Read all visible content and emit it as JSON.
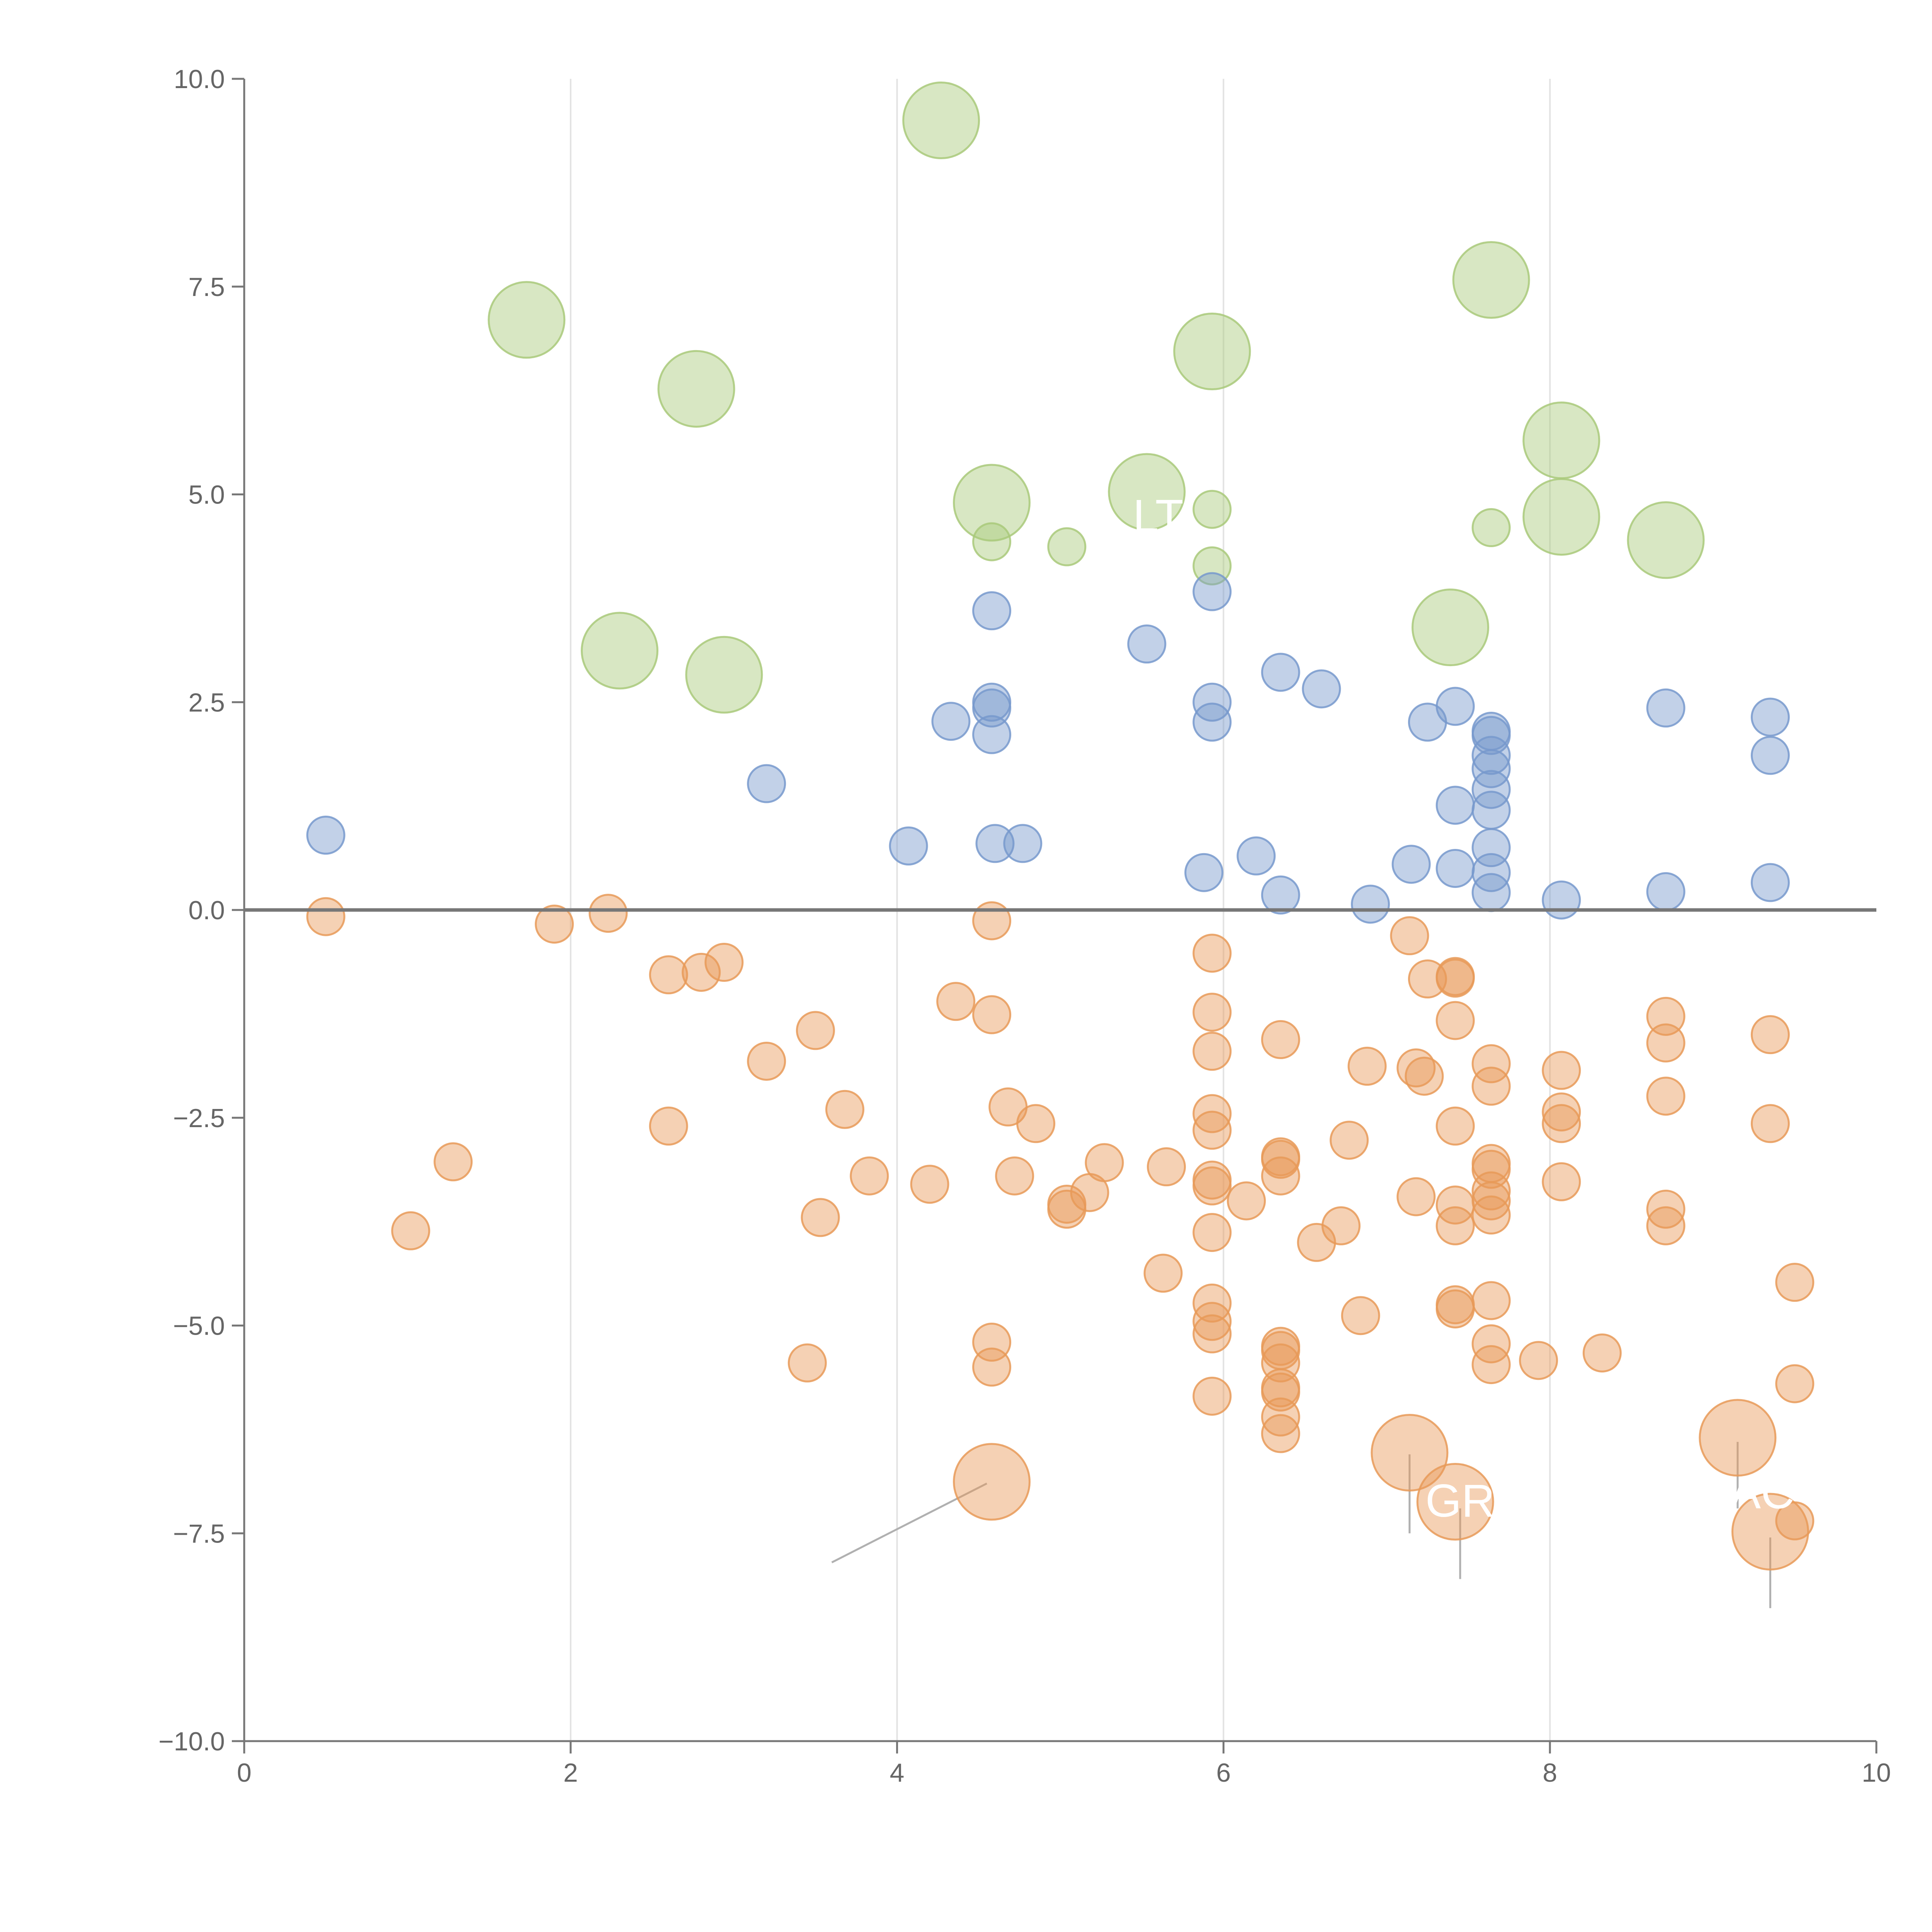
{
  "chart_data": {
    "type": "scatter",
    "title": "",
    "xlabel": "",
    "ylabel": "",
    "xlim": [
      0,
      10
    ],
    "ylim": [
      -10,
      10
    ],
    "x_ticks": [
      0,
      2,
      4,
      6,
      8,
      10
    ],
    "x_tick_labels": [
      "0",
      "2",
      "4",
      "6",
      "8",
      "10"
    ],
    "y_ticks": [
      10,
      7.5,
      5,
      2.5,
      0,
      -2.5,
      -5,
      -7.5,
      -10
    ],
    "y_tick_labels": [
      "10.0",
      "7.5",
      "5.0",
      "2.5",
      "0.0",
      "−2.5",
      "−5.0",
      "−7.5",
      "−10.0"
    ],
    "vertical_gridlines_at": [
      2,
      4,
      6,
      8
    ],
    "reference_line_y": 0,
    "colors": {
      "green": "#a9c97a",
      "blue": "#7799cc",
      "orange": "#e89a58",
      "axis": "#777777",
      "grid": "#e2e2e2",
      "leader": "#b0b0b0"
    },
    "annotations": [
      {
        "text": "GR",
        "x": 7.45,
        "y": -7.3
      },
      {
        "text": "AC",
        "x": 9.3,
        "y": -7.2
      },
      {
        "text": "LT",
        "x": 5.6,
        "y": 4.55
      }
    ],
    "series": [
      {
        "name": "green",
        "color": "#a9c97a",
        "points": [
          [
            4.27,
            9.5,
            "L"
          ],
          [
            1.73,
            7.1,
            "L"
          ],
          [
            2.77,
            6.27,
            "L"
          ],
          [
            7.64,
            7.58,
            "L"
          ],
          [
            5.93,
            6.72,
            "L"
          ],
          [
            8.07,
            5.65,
            "L"
          ],
          [
            4.58,
            4.9,
            "L"
          ],
          [
            5.53,
            5.03,
            "L"
          ],
          [
            8.07,
            4.73,
            "L"
          ],
          [
            8.71,
            4.45,
            "L"
          ],
          [
            7.39,
            3.4,
            "L"
          ],
          [
            2.3,
            3.12,
            "L"
          ],
          [
            2.94,
            2.83,
            "L"
          ],
          [
            5.93,
            4.82,
            "S"
          ],
          [
            4.58,
            4.43,
            "S"
          ],
          [
            5.04,
            4.37,
            "S"
          ],
          [
            5.93,
            4.14,
            "S"
          ],
          [
            7.64,
            4.6,
            "S"
          ]
        ]
      },
      {
        "name": "blue",
        "color": "#7799cc",
        "points": [
          [
            0.5,
            0.9
          ],
          [
            3.2,
            1.52
          ],
          [
            4.07,
            0.77
          ],
          [
            4.33,
            2.27
          ],
          [
            4.58,
            3.6
          ],
          [
            4.58,
            2.5
          ],
          [
            4.58,
            2.43
          ],
          [
            4.58,
            2.11
          ],
          [
            4.6,
            0.8
          ],
          [
            4.77,
            0.8
          ],
          [
            5.53,
            3.2
          ],
          [
            5.93,
            3.83
          ],
          [
            5.93,
            2.5
          ],
          [
            5.93,
            2.26
          ],
          [
            5.88,
            0.45
          ],
          [
            6.2,
            0.65
          ],
          [
            6.35,
            2.86
          ],
          [
            6.35,
            0.18
          ],
          [
            6.6,
            2.66
          ],
          [
            6.9,
            0.07
          ],
          [
            7.15,
            0.55
          ],
          [
            7.25,
            2.26
          ],
          [
            7.42,
            2.45
          ],
          [
            7.42,
            1.26
          ],
          [
            7.42,
            0.5
          ],
          [
            7.64,
            2.15
          ],
          [
            7.64,
            2.1
          ],
          [
            7.64,
            1.86
          ],
          [
            7.64,
            1.7
          ],
          [
            7.64,
            1.45
          ],
          [
            7.64,
            1.2
          ],
          [
            7.64,
            0.75
          ],
          [
            7.64,
            0.45
          ],
          [
            7.64,
            0.21
          ],
          [
            8.07,
            0.12
          ],
          [
            8.71,
            2.43
          ],
          [
            8.71,
            0.22
          ],
          [
            9.35,
            2.32
          ],
          [
            9.35,
            1.86
          ],
          [
            9.35,
            0.33
          ]
        ]
      },
      {
        "name": "orange",
        "color": "#e89a58",
        "points": [
          [
            0.5,
            -0.08
          ],
          [
            1.9,
            -0.17
          ],
          [
            2.23,
            -0.04
          ],
          [
            2.6,
            -0.78
          ],
          [
            2.8,
            -0.75
          ],
          [
            2.94,
            -0.63
          ],
          [
            1.28,
            -3.03
          ],
          [
            1.02,
            -3.86
          ],
          [
            2.6,
            -2.6
          ],
          [
            3.2,
            -1.82
          ],
          [
            3.5,
            -1.45
          ],
          [
            3.68,
            -2.4
          ],
          [
            3.83,
            -3.2
          ],
          [
            3.53,
            -3.7
          ],
          [
            3.45,
            -5.45
          ],
          [
            4.2,
            -3.3
          ],
          [
            4.36,
            -1.1
          ],
          [
            4.58,
            -0.13
          ],
          [
            4.58,
            -1.26
          ],
          [
            4.58,
            -5.2
          ],
          [
            4.58,
            -5.5
          ],
          [
            4.68,
            -2.37
          ],
          [
            4.72,
            -3.2
          ],
          [
            4.85,
            -2.57
          ],
          [
            5.04,
            -3.6
          ],
          [
            5.04,
            -3.54
          ],
          [
            5.18,
            -3.4
          ],
          [
            5.27,
            -3.04
          ],
          [
            5.65,
            -3.09
          ],
          [
            5.63,
            -4.37
          ],
          [
            5.93,
            -0.52
          ],
          [
            5.93,
            -1.23
          ],
          [
            5.93,
            -1.7
          ],
          [
            5.93,
            -2.45
          ],
          [
            5.93,
            -2.65
          ],
          [
            5.93,
            -3.25
          ],
          [
            5.93,
            -3.32
          ],
          [
            5.93,
            -3.88
          ],
          [
            5.93,
            -4.73
          ],
          [
            5.93,
            -4.95
          ],
          [
            5.93,
            -5.1
          ],
          [
            5.93,
            -5.85
          ],
          [
            6.14,
            -3.5
          ],
          [
            6.35,
            -1.56
          ],
          [
            6.35,
            -2.97
          ],
          [
            6.35,
            -3.0
          ],
          [
            6.35,
            -3.2
          ],
          [
            6.35,
            -5.25
          ],
          [
            6.35,
            -5.3
          ],
          [
            6.35,
            -5.45
          ],
          [
            6.35,
            -5.75
          ],
          [
            6.35,
            -5.8
          ],
          [
            6.35,
            -6.1
          ],
          [
            6.35,
            -6.3
          ],
          [
            6.57,
            -4.0
          ],
          [
            6.72,
            -3.8
          ],
          [
            6.77,
            -2.77
          ],
          [
            6.84,
            -4.88
          ],
          [
            6.88,
            -1.88
          ],
          [
            7.14,
            -0.31
          ],
          [
            7.18,
            -1.9
          ],
          [
            7.23,
            -2.0
          ],
          [
            7.25,
            -0.83
          ],
          [
            7.18,
            -3.45
          ],
          [
            7.42,
            -0.8
          ],
          [
            7.42,
            -0.82
          ],
          [
            7.42,
            -1.33
          ],
          [
            7.42,
            -2.6
          ],
          [
            7.42,
            -3.55
          ],
          [
            7.42,
            -3.8
          ],
          [
            7.42,
            -4.75
          ],
          [
            7.42,
            -4.8
          ],
          [
            7.64,
            -1.85
          ],
          [
            7.64,
            -2.12
          ],
          [
            7.64,
            -3.05
          ],
          [
            7.64,
            -3.12
          ],
          [
            7.64,
            -3.38
          ],
          [
            7.64,
            -3.5
          ],
          [
            7.64,
            -3.67
          ],
          [
            7.64,
            -4.7
          ],
          [
            7.64,
            -5.22
          ],
          [
            7.64,
            -5.47
          ],
          [
            7.93,
            -5.42
          ],
          [
            8.07,
            -1.93
          ],
          [
            8.07,
            -2.43
          ],
          [
            8.07,
            -2.57
          ],
          [
            8.07,
            -3.27
          ],
          [
            8.32,
            -5.33
          ],
          [
            8.71,
            -1.28
          ],
          [
            8.71,
            -1.6
          ],
          [
            8.71,
            -2.24
          ],
          [
            8.71,
            -3.6
          ],
          [
            8.71,
            -3.8
          ],
          [
            9.35,
            -1.5
          ],
          [
            9.35,
            -2.57
          ],
          [
            9.5,
            -4.48
          ],
          [
            9.5,
            -5.7
          ],
          [
            9.5,
            -7.35
          ],
          [
            4.58,
            -6.88,
            "L"
          ],
          [
            7.14,
            -6.53,
            "L"
          ],
          [
            7.42,
            -7.12,
            "L"
          ],
          [
            9.15,
            -6.35,
            "L"
          ],
          [
            9.35,
            -7.48,
            "L"
          ]
        ]
      }
    ]
  }
}
